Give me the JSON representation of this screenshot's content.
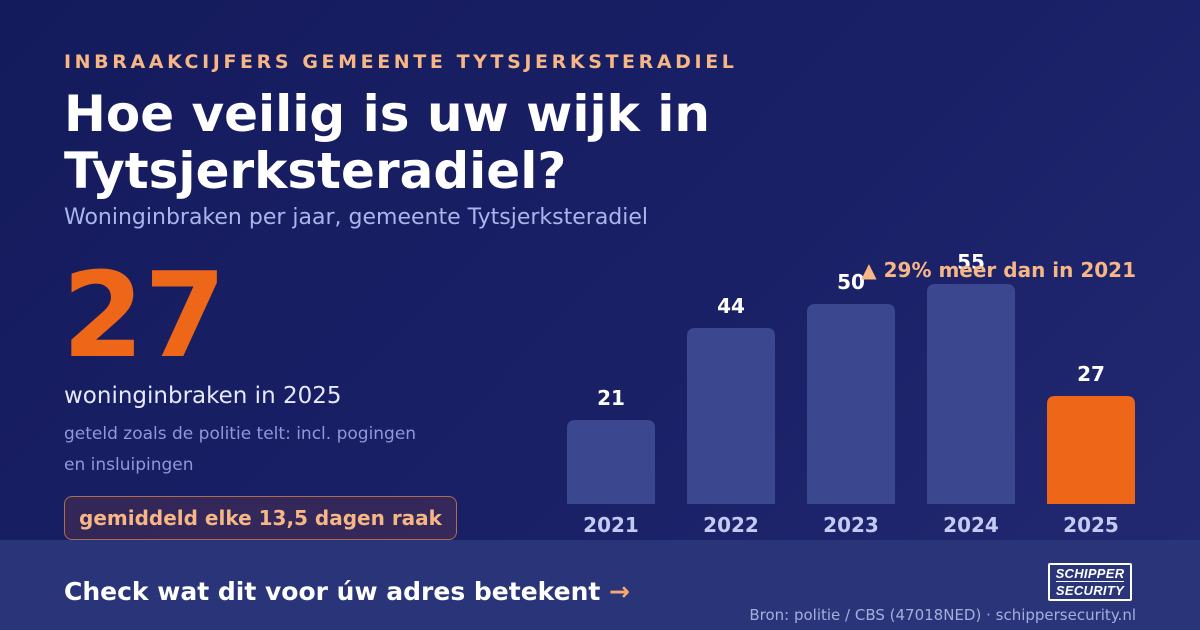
{
  "header": {
    "eyebrow": "INBRAAKCIJFERS GEMEENTE TYTSJERKSTERADIEL",
    "title": "Hoe veilig is uw wijk in Tytsjerksteradiel?",
    "subtitle": "Woninginbraken per jaar, gemeente Tytsjerksteradiel"
  },
  "highlight": {
    "number": "27",
    "label": "woninginbraken in 2025",
    "note": "geteld zoals de politie telt: incl. pogingen en insluipingen",
    "pill": "gemiddeld elke 13,5 dagen raak"
  },
  "change_label": "▲ 29% meer dan in 2021",
  "footer": {
    "cta": "Check wat dit voor úw adres betekent",
    "cta_arrow": "→",
    "source": "Bron: politie / CBS (47018NED) · schippersecurity.nl",
    "logo_line1": "SCHIPPER",
    "logo_line2": "SECURITY"
  },
  "colors": {
    "bar_default": "#3b4890",
    "bar_highlight": "#ee6618",
    "accent": "#f6b686",
    "background": "#141b5c"
  },
  "chart_data": {
    "type": "bar",
    "categories": [
      "2021",
      "2022",
      "2023",
      "2024",
      "2025"
    ],
    "values": [
      21,
      44,
      50,
      55,
      27
    ],
    "highlight_index": 4,
    "ylim": [
      0,
      55
    ]
  }
}
